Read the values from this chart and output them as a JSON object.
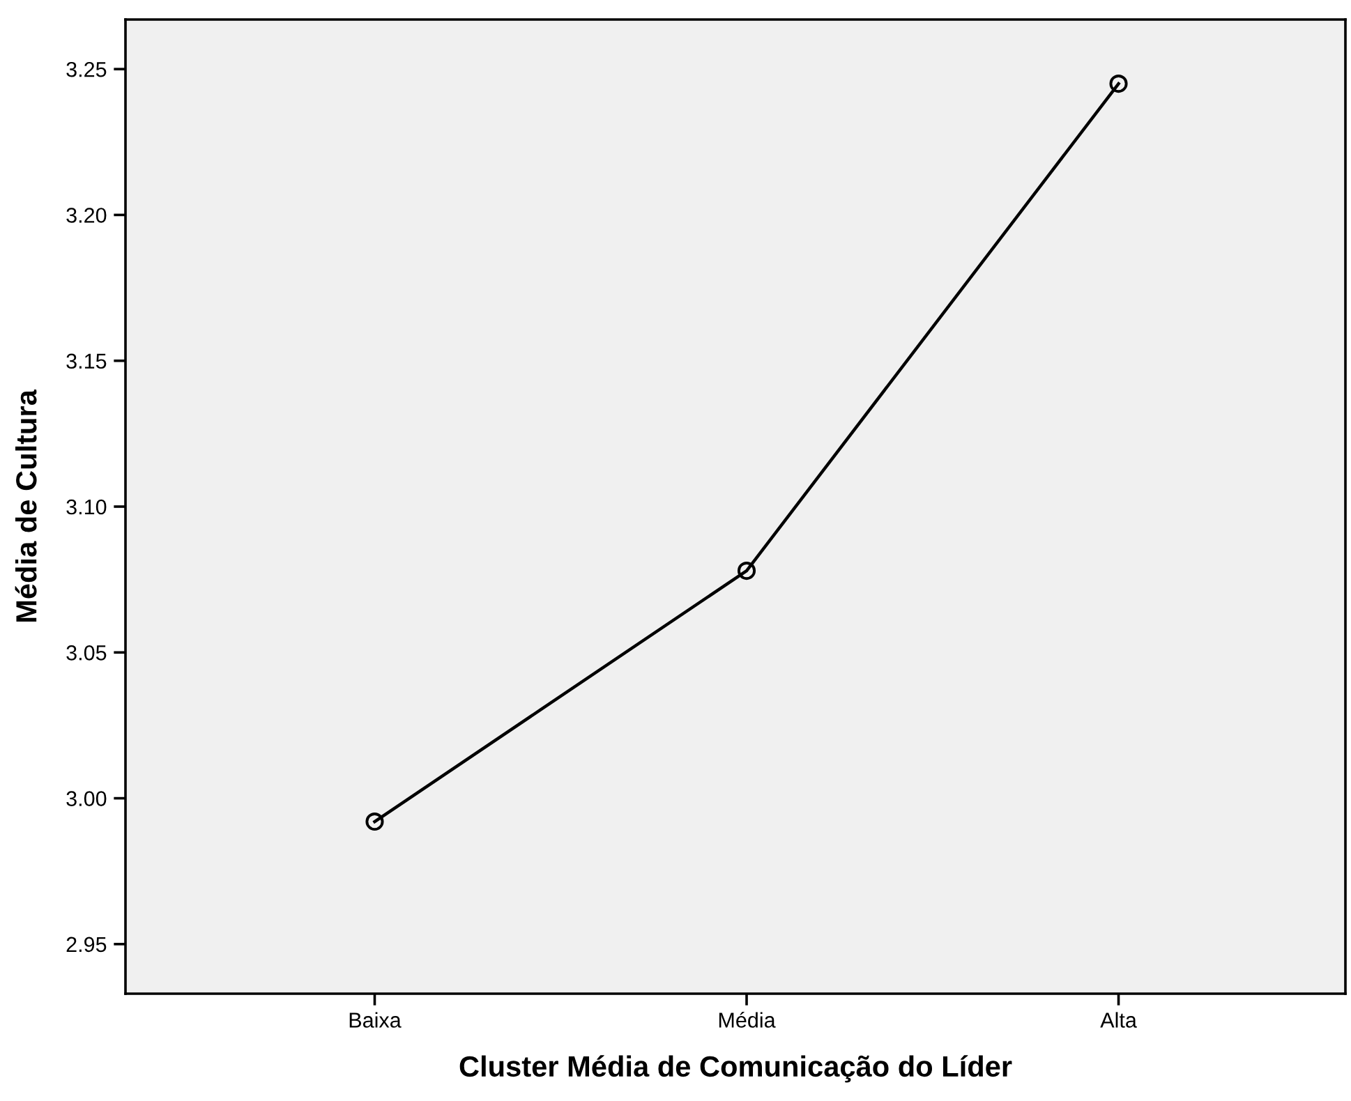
{
  "chart_data": {
    "type": "line",
    "xlabel": "Cluster Média de Comunicação do Líder",
    "ylabel": "Média de Cultura",
    "categories": [
      "Baixa",
      "Média",
      "Alta"
    ],
    "series": [
      {
        "color": "#000000",
        "values": [
          2.992,
          3.078,
          3.245
        ]
      }
    ],
    "ylim": [
      2.933,
      3.267
    ],
    "yticks": [
      {
        "value": 2.95,
        "label": "2.95"
      },
      {
        "value": 3.0,
        "label": "3.00"
      },
      {
        "value": 3.05,
        "label": "3.05"
      },
      {
        "value": 3.1,
        "label": "3.10"
      },
      {
        "value": 3.15,
        "label": "3.15"
      },
      {
        "value": 3.2,
        "label": "3.20"
      },
      {
        "value": 3.25,
        "label": "3.25"
      }
    ],
    "marker": "circle",
    "line_style": "solid"
  }
}
